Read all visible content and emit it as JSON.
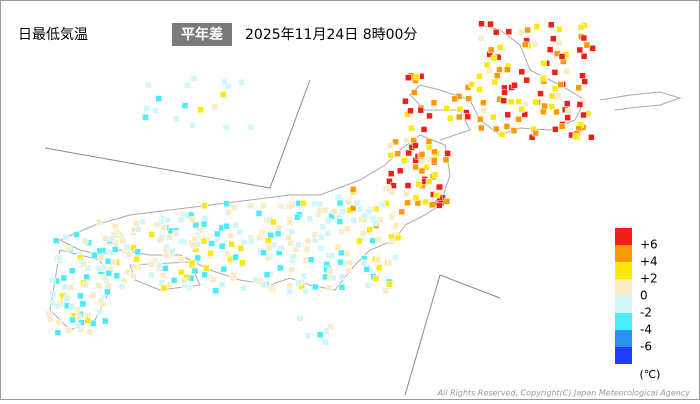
{
  "title": "日最低気温",
  "mode": "平年差",
  "datetime": "2025年11月24日 8時00分",
  "legend": {
    "colors": [
      "#f21f18",
      "#fb9a05",
      "#fae90a",
      "#faebc4",
      "#cff7f9",
      "#48ecfa",
      "#2a92f0",
      "#1f3cfc"
    ],
    "labels": [
      "+6",
      "+4",
      "+2",
      "0",
      "-2",
      "-4",
      "-6"
    ],
    "unit": "(℃)"
  },
  "copyright": "All Rights Reserved, Copyright(C) Japan Meteorological Agency"
}
